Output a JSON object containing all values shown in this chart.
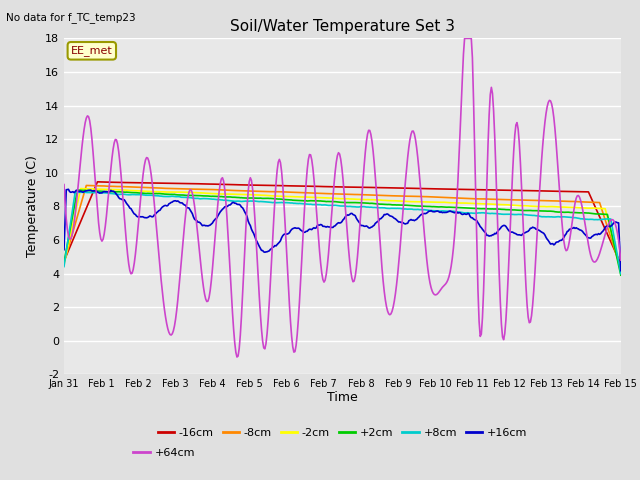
{
  "title": "Soil/Water Temperature Set 3",
  "xlabel": "Time",
  "ylabel": "Temperature (C)",
  "no_data_text": "No data for f_TC_temp23",
  "legend_label_text": "EE_met",
  "ylim": [
    -2,
    18
  ],
  "yticks": [
    -2,
    0,
    2,
    4,
    6,
    8,
    10,
    12,
    14,
    16,
    18
  ],
  "xlim": [
    0,
    15
  ],
  "xtick_labels": [
    "Jan 31",
    "Feb 1",
    "Feb 2",
    "Feb 3",
    "Feb 4",
    "Feb 5",
    "Feb 6",
    "Feb 7",
    "Feb 8",
    "Feb 9",
    "Feb 10",
    "Feb 11",
    "Feb 12",
    "Feb 13",
    "Feb 14",
    "Feb 15"
  ],
  "series_colors": [
    "#cc0000",
    "#ff8800",
    "#ffff00",
    "#00cc00",
    "#00cccc",
    "#0000cc",
    "#cc44cc"
  ],
  "series_labels": [
    "-16cm",
    "-8cm",
    "-2cm",
    "+2cm",
    "+8cm",
    "+16cm",
    "+64cm"
  ],
  "bg_color": "#e0e0e0",
  "plot_bg_color": "#e8e8e8",
  "grid_color": "#ffffff"
}
